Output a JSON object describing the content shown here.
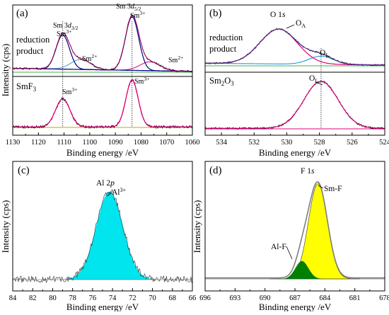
{
  "colors": {
    "fit": "#e0007a",
    "raw": "#000000",
    "baseline": "#3cb44b",
    "sm3_reduction": "#000080",
    "sm2": "#1a7fb0",
    "a_sm2": "#3e9bcf",
    "b_low": "#1f9fd6",
    "cyan_fill": "#00e5ee",
    "yellow_fill": "#ffff00",
    "green_fill": "#008000",
    "gray": "#7f7f7f"
  },
  "chart_data": [
    {
      "panel": "(a)",
      "type": "line",
      "xlabel": "Binding energy /eV",
      "ylabel": "Intensity (cps)",
      "xlim": [
        1130,
        1060
      ],
      "xticks": [
        1130,
        1120,
        1110,
        1100,
        1090,
        1080,
        1070,
        1060
      ],
      "axis_reversed": true,
      "grid": false,
      "samples": [
        "reduction product",
        "SmF3"
      ],
      "annotations": {
        "sm3d32": "Sm 3d3/2",
        "sm3d52": "Sm 3d5/2",
        "sm3": "Sm3+",
        "sm2": "Sm2+"
      },
      "series": [
        {
          "sample": "reduction product",
          "component": "Sm3+ 3d3/2",
          "center": 1110.5,
          "height": 0.62
        },
        {
          "sample": "reduction product",
          "component": "Sm2+ 3d3/2",
          "center": 1103.5,
          "height": 0.18
        },
        {
          "sample": "reduction product",
          "component": "Sm3+ 3d5/2",
          "center": 1083.5,
          "height": 0.97
        },
        {
          "sample": "reduction product",
          "component": "Sm2+ 3d5/2",
          "center": 1076.5,
          "height": 0.16
        },
        {
          "sample": "SmF3",
          "component": "Sm3+ 3d3/2",
          "center": 1110.5,
          "height": 0.55
        },
        {
          "sample": "SmF3",
          "component": "Sm3+ 3d5/2",
          "center": 1083.5,
          "height": 0.92
        }
      ]
    },
    {
      "panel": "(b)",
      "type": "line",
      "xlabel": "Binding energy /eV",
      "xlim": [
        535,
        524
      ],
      "xticks": [
        534,
        532,
        530,
        528,
        526,
        524
      ],
      "axis_reversed": true,
      "grid": false,
      "samples": [
        "reduction product",
        "Sm2O3"
      ],
      "annotations": {
        "title": "O 1s",
        "oa": "OA",
        "ol": "OL"
      },
      "series": [
        {
          "sample": "reduction product",
          "component": "OA",
          "center": 530.5,
          "height": 0.85
        },
        {
          "sample": "reduction product",
          "component": "OL",
          "center": 527.9,
          "height": 0.2
        },
        {
          "sample": "Sm2O3",
          "component": "OL",
          "center": 527.9,
          "height": 0.92
        }
      ]
    },
    {
      "panel": "(c)",
      "type": "area",
      "xlabel": "Binding energy /eV",
      "ylabel": "Intensity (cps)",
      "xlim": [
        84,
        66
      ],
      "xticks": [
        84,
        82,
        80,
        78,
        76,
        74,
        72,
        70,
        68,
        66
      ],
      "axis_reversed": true,
      "grid": false,
      "annotations": {
        "title": "Al 2p",
        "peak": "Al3+"
      },
      "series": [
        {
          "component": "Al3+",
          "center": 74.3,
          "height": 0.92
        }
      ]
    },
    {
      "panel": "(d)",
      "type": "area",
      "xlabel": "Binding energy /eV",
      "ylabel": "Intensity (cps)",
      "xlim": [
        696,
        678
      ],
      "xticks": [
        696,
        693,
        690,
        687,
        684,
        681,
        678
      ],
      "axis_reversed": true,
      "grid": false,
      "annotations": {
        "title": "F 1s",
        "smf": "Sm-F",
        "alf": "Al-F"
      },
      "series": [
        {
          "component": "Sm-F",
          "center": 684.7,
          "height": 0.96
        },
        {
          "component": "Al-F",
          "center": 686.3,
          "height": 0.18
        }
      ]
    }
  ]
}
